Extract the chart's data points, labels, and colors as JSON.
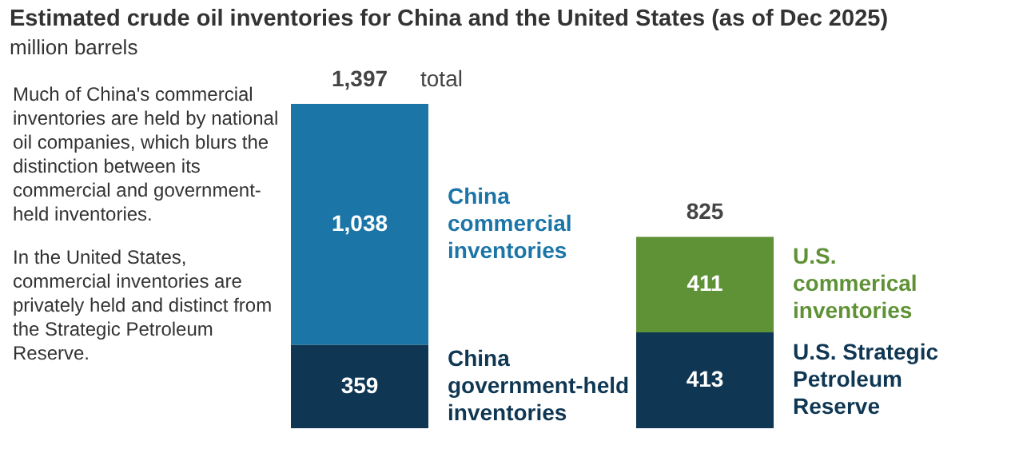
{
  "chart_data": {
    "type": "bar",
    "title": "Estimated crude oil inventories for China and the United States (as of Dec 2025)",
    "subtitle": "million barrels",
    "categories": [
      null,
      null
    ],
    "stacked": true,
    "legend": false,
    "series": [
      {
        "name": "China government-held inventories",
        "color": "#0f3753",
        "values": [
          359,
          null
        ],
        "value_labels": [
          "359",
          null
        ]
      },
      {
        "name": "U.S. Strategic Petroleum Reserve",
        "color": "#0f3753",
        "values": [
          null,
          413
        ],
        "value_labels": [
          null,
          "413"
        ]
      },
      {
        "name": "China commercial inventories",
        "color": "#1c75a7",
        "values": [
          1038,
          null
        ],
        "value_labels": [
          "1,038",
          null
        ]
      },
      {
        "name": "U.S. commerical inventories",
        "color": "#5f9236",
        "values": [
          null,
          411
        ],
        "value_labels": [
          null,
          "411"
        ]
      }
    ],
    "totals": [
      "1,397",
      "825"
    ],
    "annotations": [
      "total",
      "Much of China's commercial inventories are held by national oil companies, which blurs the distinction between its commercial and government-held inventories.",
      "In the United States, commercial inventories are privately held and distinct from the Strategic Petroleum Reserve."
    ]
  }
}
